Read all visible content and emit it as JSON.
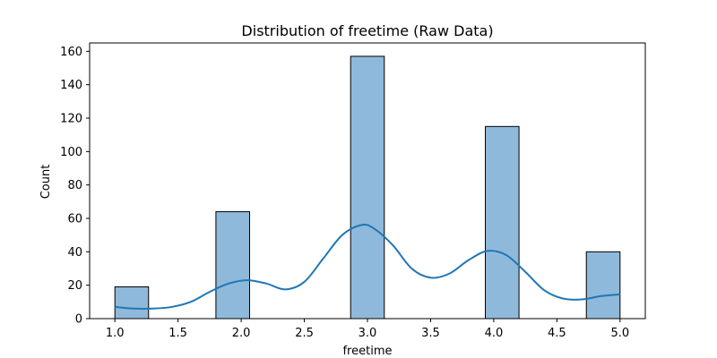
{
  "chart_data": {
    "type": "bar",
    "title": "Distribution of freetime (Raw Data)",
    "xlabel": "freetime",
    "ylabel": "Count",
    "bins": [
      {
        "start": 1.0,
        "end": 1.2667,
        "count": 19
      },
      {
        "start": 1.8,
        "end": 2.0667,
        "count": 64
      },
      {
        "start": 2.8667,
        "end": 3.1333,
        "count": 157
      },
      {
        "start": 3.9333,
        "end": 4.2,
        "count": 115
      },
      {
        "start": 4.7333,
        "end": 5.0,
        "count": 40
      }
    ],
    "kde_curve": {
      "x": [
        1.0,
        1.15,
        1.3,
        1.45,
        1.6,
        1.75,
        1.9,
        2.05,
        2.2,
        2.35,
        2.5,
        2.65,
        2.8,
        2.95,
        3.05,
        3.2,
        3.35,
        3.5,
        3.65,
        3.8,
        3.95,
        4.1,
        4.25,
        4.4,
        4.55,
        4.7,
        4.85,
        5.0
      ],
      "y": [
        7,
        6,
        6,
        7,
        10,
        16,
        21,
        23,
        21,
        17.5,
        22,
        36,
        50,
        56,
        54,
        44,
        30,
        24.5,
        27,
        35,
        40.5,
        38,
        28,
        17,
        12,
        11.5,
        13.5,
        14.5
      ]
    },
    "xlim": [
      0.8,
      5.2
    ],
    "ylim": [
      0,
      165
    ],
    "xticks": [
      1.0,
      1.5,
      2.0,
      2.5,
      3.0,
      3.5,
      4.0,
      4.5,
      5.0
    ],
    "xtick_labels": [
      "1.0",
      "1.5",
      "2.0",
      "2.5",
      "3.0",
      "3.5",
      "4.0",
      "4.5",
      "5.0"
    ],
    "yticks": [
      0,
      20,
      40,
      60,
      80,
      100,
      120,
      140,
      160
    ],
    "ytick_labels": [
      "0",
      "20",
      "40",
      "60",
      "80",
      "100",
      "120",
      "140",
      "160"
    ],
    "grid": false,
    "colors": {
      "bar_fill": "#8fb9db",
      "bar_edge": "#000000",
      "curve": "#1f77b4"
    }
  }
}
